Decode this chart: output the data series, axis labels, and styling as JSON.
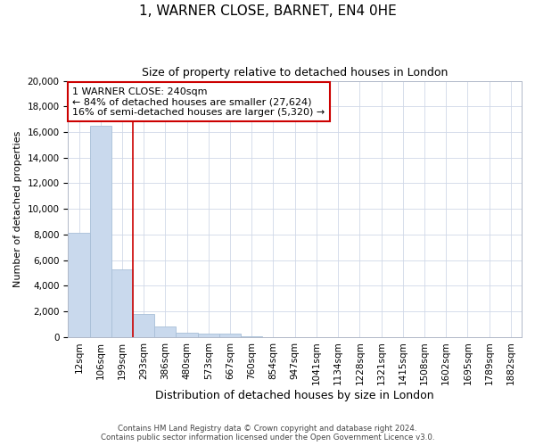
{
  "title": "1, WARNER CLOSE, BARNET, EN4 0HE",
  "subtitle": "Size of property relative to detached houses in London",
  "xlabel": "Distribution of detached houses by size in London",
  "ylabel": "Number of detached properties",
  "categories": [
    "12sqm",
    "106sqm",
    "199sqm",
    "293sqm",
    "386sqm",
    "480sqm",
    "573sqm",
    "667sqm",
    "760sqm",
    "854sqm",
    "947sqm",
    "1041sqm",
    "1134sqm",
    "1228sqm",
    "1321sqm",
    "1415sqm",
    "1508sqm",
    "1602sqm",
    "1695sqm",
    "1789sqm",
    "1882sqm"
  ],
  "values": [
    8100,
    16500,
    5300,
    1800,
    800,
    350,
    300,
    300,
    50,
    0,
    0,
    0,
    0,
    0,
    0,
    0,
    0,
    0,
    0,
    0,
    0
  ],
  "bar_color": "#c9d9ed",
  "bar_edge_color": "#a8bfd8",
  "property_line_x": 2.5,
  "property_line_color": "#cc0000",
  "annotation_text": "1 WARNER CLOSE: 240sqm\n← 84% of detached houses are smaller (27,624)\n16% of semi-detached houses are larger (5,320) →",
  "annotation_box_color": "#cc0000",
  "ylim": [
    0,
    20000
  ],
  "yticks": [
    0,
    2000,
    4000,
    6000,
    8000,
    10000,
    12000,
    14000,
    16000,
    18000,
    20000
  ],
  "footer_line1": "Contains HM Land Registry data © Crown copyright and database right 2024.",
  "footer_line2": "Contains public sector information licensed under the Open Government Licence v3.0.",
  "background_color": "#ffffff",
  "grid_color": "#d0d8e8",
  "title_fontsize": 11,
  "subtitle_fontsize": 9,
  "xlabel_fontsize": 9,
  "ylabel_fontsize": 8,
  "tick_fontsize": 7.5,
  "annotation_fontsize": 8
}
